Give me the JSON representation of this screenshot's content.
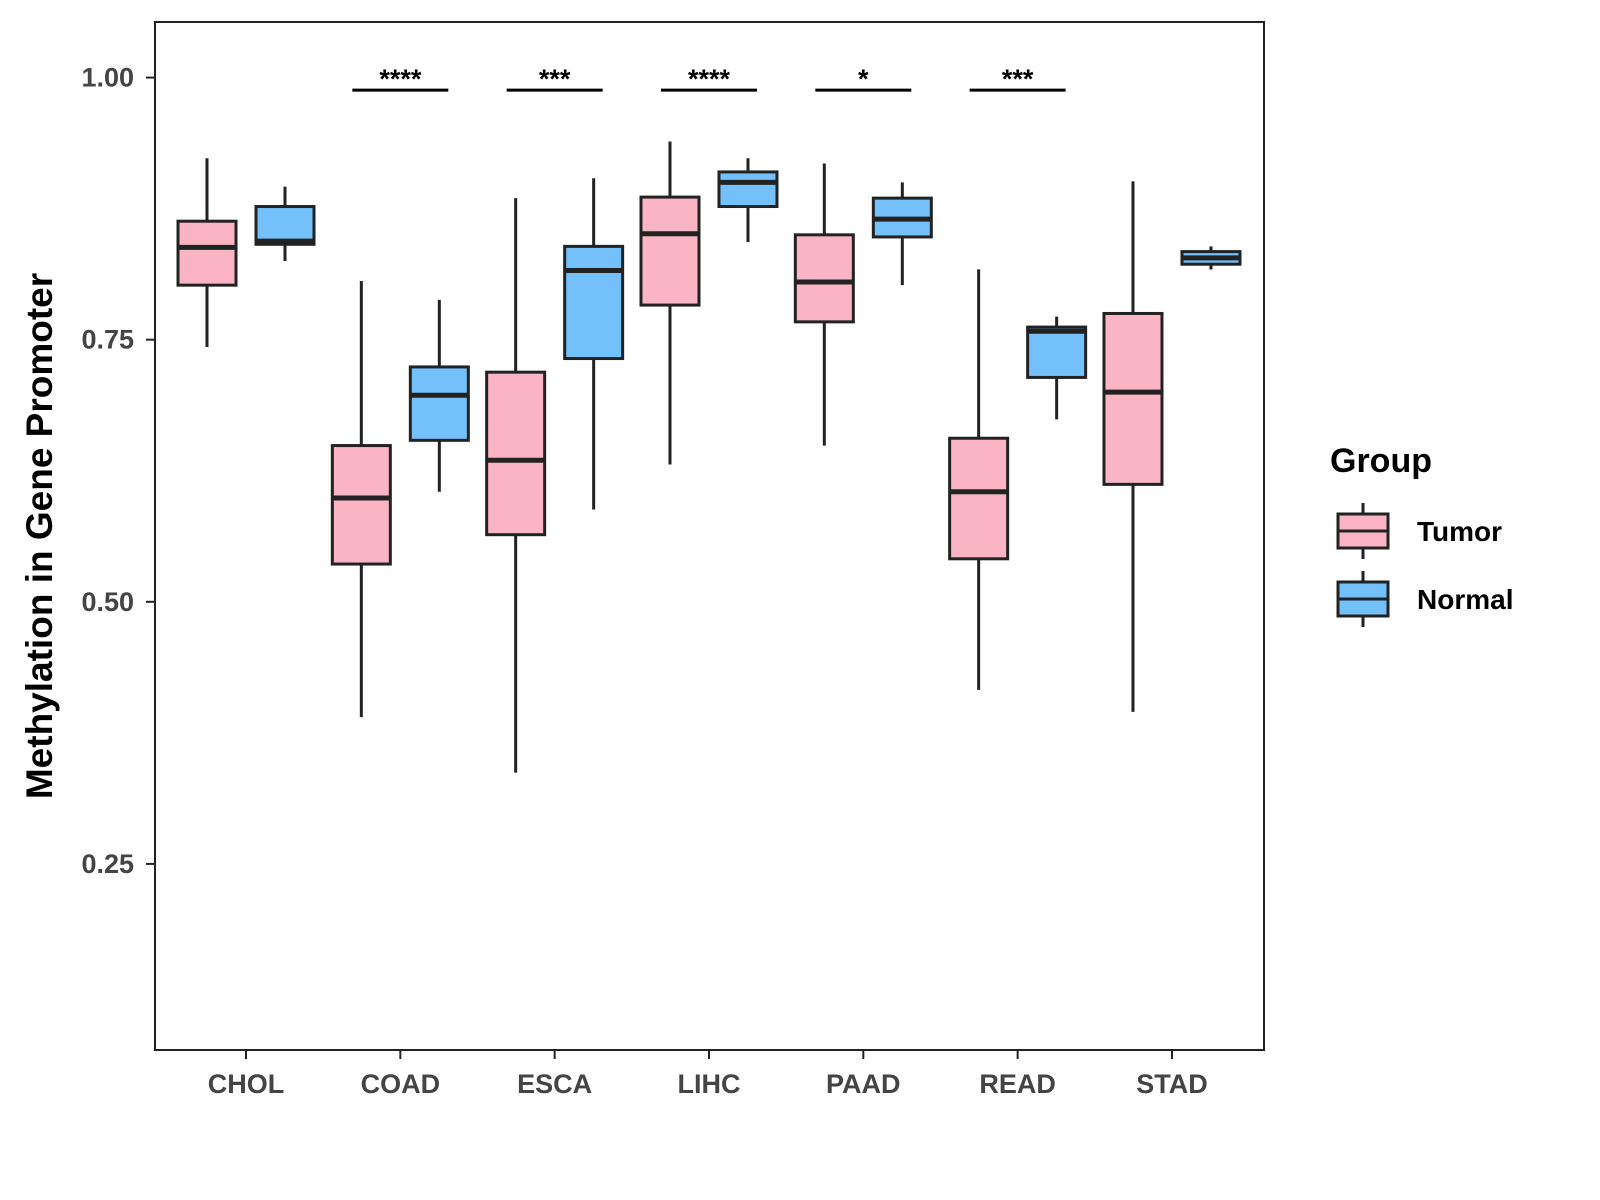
{
  "chart_data": {
    "type": "boxplot",
    "title": "",
    "xlabel": "",
    "ylabel": "Methylation in Gene Promoter",
    "ylim": [
      0.0725,
      1.053
    ],
    "yticks": [
      "0.25",
      "0.50",
      "0.75",
      "1.00"
    ],
    "ytick_values": [
      0.25,
      0.5,
      0.75,
      1.0
    ],
    "categories": [
      "CHOL",
      "COAD",
      "ESCA",
      "LIHC",
      "PAAD",
      "READ",
      "STAD"
    ],
    "legend": {
      "title": "Group",
      "placement": "right",
      "entries": [
        "Tumor",
        "Normal"
      ]
    },
    "colors": {
      "Tumor": "#FBB4C4",
      "Normal": "#74C0FA"
    },
    "series": [
      {
        "name": "Tumor",
        "boxes": [
          {
            "min": 0.743,
            "q1": 0.802,
            "median": 0.838,
            "q3": 0.863,
            "max": 0.923
          },
          {
            "min": 0.39,
            "q1": 0.536,
            "median": 0.599,
            "q3": 0.649,
            "max": 0.806
          },
          {
            "min": 0.337,
            "q1": 0.564,
            "median": 0.635,
            "q3": 0.719,
            "max": 0.885
          },
          {
            "min": 0.631,
            "q1": 0.783,
            "median": 0.851,
            "q3": 0.886,
            "max": 0.939
          },
          {
            "min": 0.649,
            "q1": 0.767,
            "median": 0.805,
            "q3": 0.85,
            "max": 0.918
          },
          {
            "min": 0.416,
            "q1": 0.541,
            "median": 0.605,
            "q3": 0.656,
            "max": 0.817
          },
          {
            "min": 0.395,
            "q1": 0.612,
            "median": 0.7,
            "q3": 0.775,
            "max": 0.901
          }
        ]
      },
      {
        "name": "Normal",
        "boxes": [
          {
            "min": 0.825,
            "q1": 0.841,
            "median": 0.844,
            "q3": 0.877,
            "max": 0.896
          },
          {
            "min": 0.605,
            "q1": 0.654,
            "median": 0.697,
            "q3": 0.724,
            "max": 0.788
          },
          {
            "min": 0.588,
            "q1": 0.732,
            "median": 0.816,
            "q3": 0.839,
            "max": 0.904
          },
          {
            "min": 0.843,
            "q1": 0.877,
            "median": 0.9,
            "q3": 0.91,
            "max": 0.923
          },
          {
            "min": 0.802,
            "q1": 0.848,
            "median": 0.865,
            "q3": 0.885,
            "max": 0.9
          },
          {
            "min": 0.674,
            "q1": 0.714,
            "median": 0.758,
            "q3": 0.762,
            "max": 0.772
          },
          {
            "min": 0.817,
            "q1": 0.822,
            "median": 0.828,
            "q3": 0.834,
            "max": 0.839
          }
        ]
      }
    ],
    "annotations": [
      {
        "category": "COAD",
        "label": "****"
      },
      {
        "category": "ESCA",
        "label": "***"
      },
      {
        "category": "LIHC",
        "label": "****"
      },
      {
        "category": "PAAD",
        "label": "*"
      },
      {
        "category": "READ",
        "label": "***"
      }
    ],
    "annotation_y": 0.988
  }
}
